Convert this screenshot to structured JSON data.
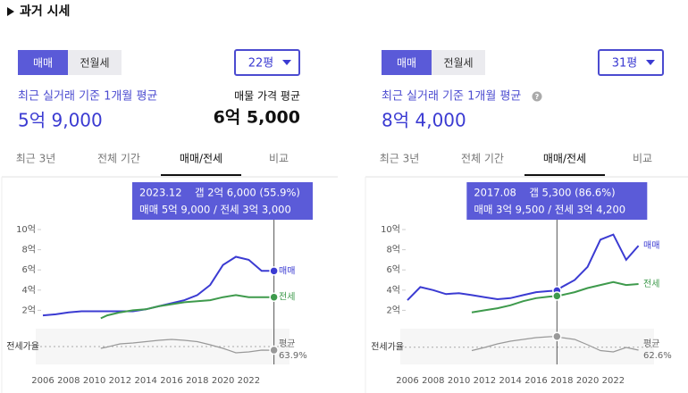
{
  "header": {
    "title": "과거 시세"
  },
  "panels": [
    {
      "trade_tabs": [
        "매매",
        "전월세"
      ],
      "size": "22평",
      "recent_label": "최근 실거래 기준 1개월 평균",
      "recent_price": "5억 9,000",
      "listing_label": "매물 가격 평균",
      "listing_price": "6억 5,000",
      "period_tabs": [
        "최근 3년",
        "전체 기간",
        "매매/전세",
        "비교"
      ]
    },
    {
      "trade_tabs": [
        "매매",
        "전월세"
      ],
      "size": "31평",
      "recent_label": "최근 실거래 기준 1개월 평균",
      "recent_price": "8억 4,000",
      "period_tabs": [
        "최근 3년",
        "전체 기간",
        "매매/전세",
        "비교"
      ]
    }
  ],
  "chart_data": [
    {
      "type": "line",
      "x": [
        2006,
        2007,
        2008,
        2009,
        2010,
        2010.5,
        2011,
        2012,
        2013,
        2014,
        2015,
        2016,
        2017,
        2018,
        2019,
        2020,
        2021,
        2022,
        2023,
        2023.96
      ],
      "xlim": [
        2005.5,
        2024.5
      ],
      "xticks": [
        2006,
        2008,
        2010,
        2012,
        2014,
        2016,
        2018,
        2020,
        2022
      ],
      "ylim": [
        0,
        11
      ],
      "yticks": [
        {
          "value": 2,
          "label": "2억"
        },
        {
          "value": 4,
          "label": "4억"
        },
        {
          "value": 6,
          "label": "6억"
        },
        {
          "value": 8,
          "label": "8억"
        },
        {
          "value": 10,
          "label": "10억"
        }
      ],
      "y2lim": [
        30,
        100
      ],
      "series": [
        {
          "name": "매매",
          "color": "#3b3bd2",
          "values": [
            1.5,
            1.6,
            1.8,
            1.9,
            1.9,
            1.9,
            1.9,
            1.9,
            1.9,
            2.1,
            2.4,
            2.7,
            3.0,
            3.5,
            4.5,
            6.5,
            7.3,
            7.0,
            5.9,
            5.9
          ]
        },
        {
          "name": "전세",
          "color": "#3e9a4c",
          "values": [
            null,
            null,
            null,
            null,
            null,
            1.2,
            1.5,
            1.8,
            2.0,
            2.1,
            2.4,
            2.6,
            2.8,
            2.9,
            3.0,
            3.3,
            3.5,
            3.3,
            3.3,
            3.3
          ]
        },
        {
          "name": "전세가율",
          "color": "#999999",
          "axis": "y2",
          "values": [
            null,
            null,
            null,
            null,
            null,
            60,
            63,
            70,
            72,
            75,
            78,
            80,
            78,
            75,
            68,
            60,
            50,
            52,
            56,
            55.9
          ]
        }
      ],
      "average_label": "평균",
      "average": 63.9,
      "average_label_value": "63.9%",
      "tooltip": {
        "date": "2023.12",
        "gap": "갭 2억 6,000 (55.9%)",
        "detail": "매매 5억 9,000 / 전세 3억 3,000"
      }
    },
    {
      "type": "line",
      "x": [
        2006,
        2007,
        2008,
        2009,
        2010,
        2011,
        2012,
        2013,
        2014,
        2015,
        2016,
        2017,
        2017.62,
        2018,
        2019,
        2020,
        2021,
        2022,
        2023,
        2023.96
      ],
      "xlim": [
        2005.5,
        2024.5
      ],
      "xticks": [
        2006,
        2008,
        2010,
        2012,
        2014,
        2016,
        2018,
        2020,
        2022
      ],
      "ylim": [
        0,
        11
      ],
      "yticks": [
        {
          "value": 2,
          "label": "2억"
        },
        {
          "value": 4,
          "label": "4억"
        },
        {
          "value": 6,
          "label": "6억"
        },
        {
          "value": 8,
          "label": "8억"
        },
        {
          "value": 10,
          "label": "10억"
        }
      ],
      "y2lim": [
        30,
        100
      ],
      "series": [
        {
          "name": "매매",
          "color": "#3b3bd2",
          "values": [
            3.0,
            4.3,
            4.0,
            3.6,
            3.7,
            3.5,
            3.3,
            3.1,
            3.2,
            3.5,
            3.8,
            3.9,
            3.95,
            4.3,
            5.0,
            6.3,
            9.0,
            9.5,
            7.0,
            8.4
          ]
        },
        {
          "name": "전세",
          "color": "#3e9a4c",
          "values": [
            null,
            null,
            null,
            null,
            null,
            1.8,
            2.0,
            2.2,
            2.5,
            2.9,
            3.2,
            3.35,
            3.42,
            3.5,
            3.8,
            4.2,
            4.5,
            4.8,
            4.5,
            4.6
          ]
        },
        {
          "name": "전세가율",
          "color": "#999999",
          "axis": "y2",
          "values": [
            null,
            null,
            null,
            null,
            null,
            55,
            62,
            70,
            76,
            80,
            84,
            86,
            86.6,
            84,
            80,
            68,
            55,
            52,
            62,
            56
          ]
        }
      ],
      "average_label": "평균",
      "average": 62.6,
      "average_label_value": "62.6%",
      "tooltip": {
        "date": "2017.08",
        "gap": "갭 5,300 (86.6%)",
        "detail": "매매 3억 9,500 / 전세 3억 4,200"
      }
    }
  ]
}
